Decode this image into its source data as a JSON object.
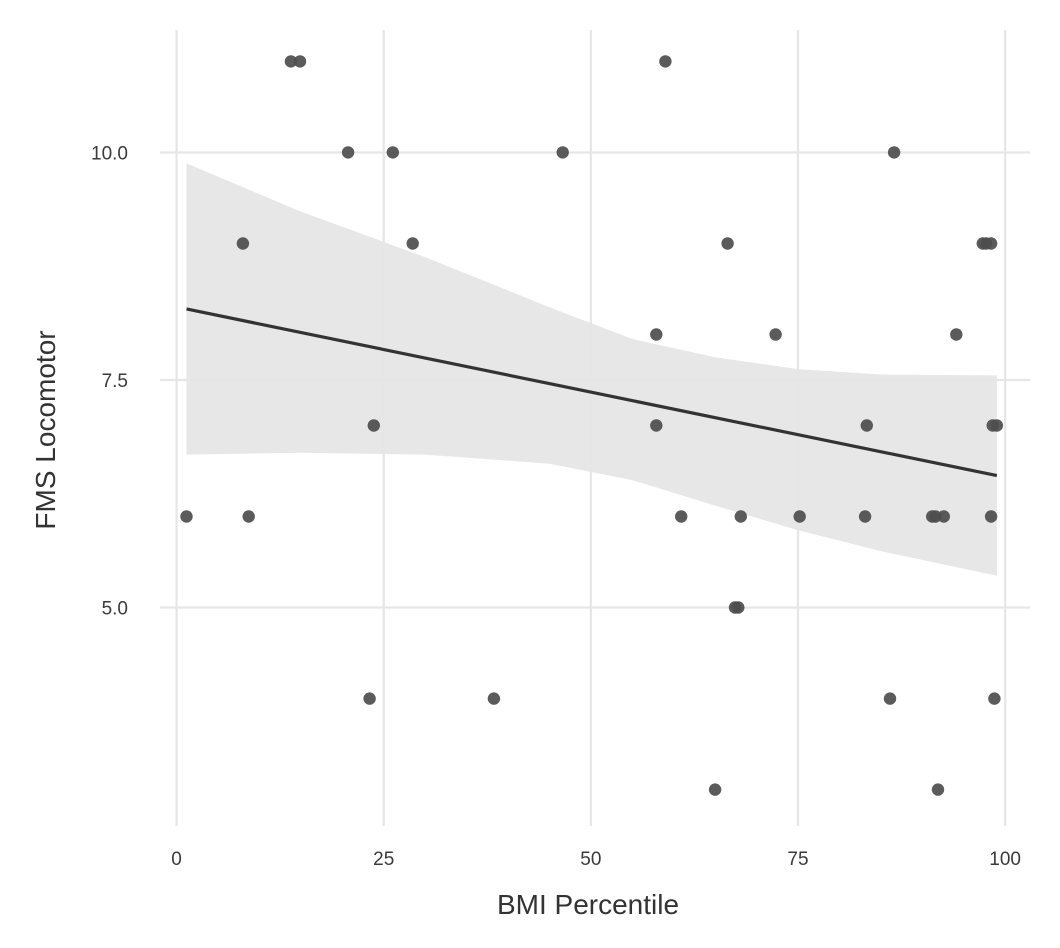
{
  "chart_data": {
    "type": "scatter",
    "title": "",
    "xlabel": "BMI Percentile",
    "ylabel": "FMS Locomotor",
    "xlim": [
      -2,
      103
    ],
    "ylim": [
      2.6,
      11.4
    ],
    "x_ticks": [
      0,
      25,
      50,
      75,
      100
    ],
    "x_tick_labels": [
      "0",
      "25",
      "50",
      "75",
      "100"
    ],
    "y_ticks": [
      5.0,
      7.5,
      10.0
    ],
    "y_tick_labels": [
      "5.0",
      "7.5",
      "10.0"
    ],
    "grid": true,
    "legend": "none",
    "points": [
      {
        "x": 13.8,
        "y": 11
      },
      {
        "x": 14.9,
        "y": 11
      },
      {
        "x": 59.0,
        "y": 11
      },
      {
        "x": 20.7,
        "y": 10
      },
      {
        "x": 26.1,
        "y": 10
      },
      {
        "x": 46.6,
        "y": 10
      },
      {
        "x": 86.6,
        "y": 10
      },
      {
        "x": 8.0,
        "y": 9
      },
      {
        "x": 28.5,
        "y": 9
      },
      {
        "x": 66.5,
        "y": 9
      },
      {
        "x": 97.3,
        "y": 9
      },
      {
        "x": 97.7,
        "y": 9
      },
      {
        "x": 98.3,
        "y": 9
      },
      {
        "x": 57.9,
        "y": 8
      },
      {
        "x": 72.3,
        "y": 8
      },
      {
        "x": 94.1,
        "y": 8
      },
      {
        "x": 23.8,
        "y": 7
      },
      {
        "x": 57.9,
        "y": 7
      },
      {
        "x": 83.3,
        "y": 7
      },
      {
        "x": 98.5,
        "y": 7
      },
      {
        "x": 99.0,
        "y": 7
      },
      {
        "x": 1.2,
        "y": 6
      },
      {
        "x": 8.7,
        "y": 6
      },
      {
        "x": 60.9,
        "y": 6
      },
      {
        "x": 68.1,
        "y": 6
      },
      {
        "x": 75.2,
        "y": 6
      },
      {
        "x": 83.1,
        "y": 6
      },
      {
        "x": 91.2,
        "y": 6
      },
      {
        "x": 91.6,
        "y": 6
      },
      {
        "x": 92.6,
        "y": 6
      },
      {
        "x": 98.3,
        "y": 6
      },
      {
        "x": 67.4,
        "y": 5
      },
      {
        "x": 67.8,
        "y": 5
      },
      {
        "x": 23.3,
        "y": 4
      },
      {
        "x": 38.3,
        "y": 4
      },
      {
        "x": 86.1,
        "y": 4
      },
      {
        "x": 98.7,
        "y": 4
      },
      {
        "x": 65.0,
        "y": 3
      },
      {
        "x": 91.9,
        "y": 3
      }
    ],
    "regression_line": {
      "x": [
        1.2,
        99.0
      ],
      "y": [
        8.28,
        6.45
      ]
    },
    "confidence_band": {
      "x": [
        1.2,
        15,
        30,
        45,
        55,
        65,
        75,
        85,
        99.0
      ],
      "lower": [
        6.68,
        6.7,
        6.68,
        6.58,
        6.4,
        6.12,
        5.85,
        5.62,
        5.35
      ],
      "upper": [
        9.88,
        9.35,
        8.85,
        8.3,
        7.95,
        7.75,
        7.62,
        7.56,
        7.55
      ]
    },
    "colors": {
      "point": "#4d4d4d",
      "line": "#333333",
      "band": "#e6e6e6",
      "grid": "#e6e6e6"
    }
  }
}
